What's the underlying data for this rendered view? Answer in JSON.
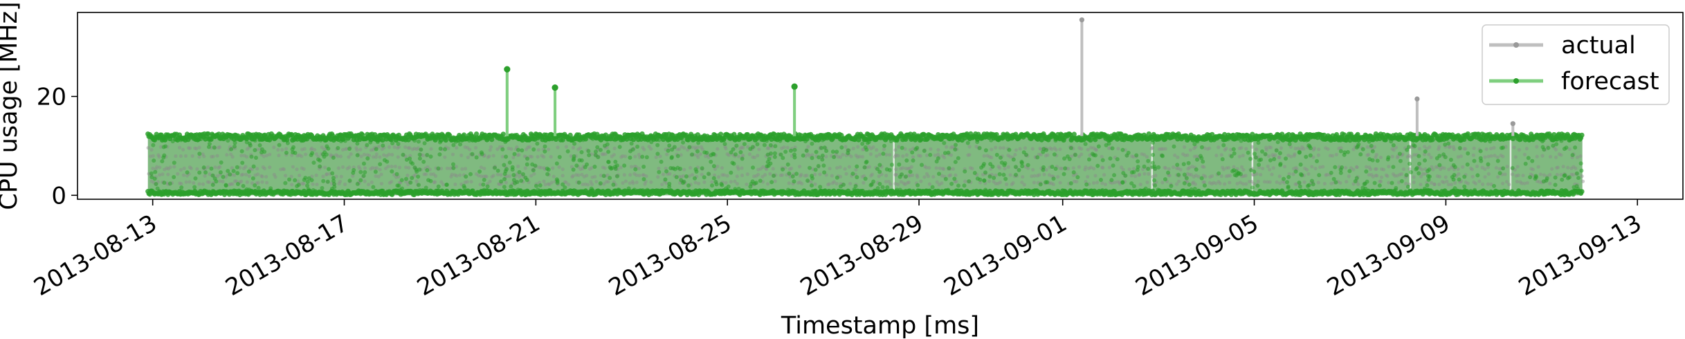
{
  "chart_data": {
    "type": "line",
    "xlabel": "Timestamp [ms]",
    "ylabel": "CPU usage [MHz]",
    "x_range": [
      "2013-08-11",
      "2013-09-13"
    ],
    "ylim": [
      -0.8,
      37
    ],
    "x_ticks": [
      "2013-08-13",
      "2013-08-17",
      "2013-08-21",
      "2013-08-25",
      "2013-08-29",
      "2013-09-01",
      "2013-09-05",
      "2013-09-09",
      "2013-09-13"
    ],
    "y_ticks": [
      0,
      20
    ],
    "grid": false,
    "legend_position": "top-right",
    "data_start": "2013-08-12",
    "data_end": "2013-09-11",
    "series": [
      {
        "name": "actual",
        "color": "#bfbfbf",
        "band": [
          0,
          12
        ],
        "spikes": [
          {
            "x": "2013-08-20",
            "y": 25.5
          },
          {
            "x": "2013-08-21",
            "y": 21.8
          },
          {
            "x": "2013-08-26",
            "y": 22
          },
          {
            "x": "2013-09-01",
            "y": 35.5
          },
          {
            "x": "2013-09-08",
            "y": 19.5
          },
          {
            "x": "2013-09-10",
            "y": 14.5
          }
        ]
      },
      {
        "name": "forecast",
        "color": "#2ca02c",
        "band": [
          0,
          12
        ],
        "spikes": [
          {
            "x": "2013-08-20",
            "y": 25.5
          },
          {
            "x": "2013-08-21",
            "y": 21.8
          },
          {
            "x": "2013-08-26",
            "y": 22
          }
        ]
      }
    ]
  }
}
